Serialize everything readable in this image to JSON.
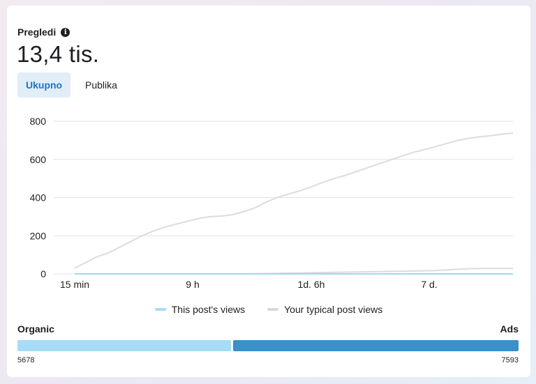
{
  "card": {
    "title": "Pregledi",
    "total": "13,4 tis.",
    "tabs": [
      {
        "label": "Ukupno",
        "active": true
      },
      {
        "label": "Publika",
        "active": false
      }
    ]
  },
  "chart_data": {
    "type": "line",
    "y_ticks": [
      "800",
      "600",
      "400",
      "200",
      "0"
    ],
    "ylim": [
      0,
      800
    ],
    "x_ticks": [
      "15 min",
      "9 h",
      "1d. 6h",
      "7 d."
    ],
    "grid": true,
    "series": [
      {
        "name": "This post's views",
        "color": "#9fd8f6",
        "values": [
          0,
          0,
          0,
          0,
          0,
          0,
          0,
          0,
          0,
          0,
          0,
          0,
          0,
          0,
          0,
          0,
          0,
          0,
          0,
          0,
          0,
          0,
          0,
          0,
          0,
          0,
          0,
          0,
          0,
          0,
          0,
          0,
          0,
          0,
          0,
          0,
          0,
          0,
          0,
          0
        ]
      },
      {
        "name": "Your typical post views",
        "color": "#dcdcdc",
        "values": [
          30,
          60,
          90,
          110,
          140,
          170,
          200,
          225,
          245,
          260,
          275,
          290,
          300,
          303,
          310,
          325,
          345,
          375,
          400,
          418,
          435,
          455,
          478,
          498,
          515,
          535,
          555,
          575,
          595,
          615,
          635,
          650,
          665,
          682,
          698,
          710,
          718,
          724,
          732,
          738
        ]
      },
      {
        "name": "",
        "color": "#dcdcdc",
        "values": [
          0,
          0,
          0,
          0,
          0,
          0,
          0,
          0,
          0,
          0,
          0,
          0,
          0,
          0,
          0,
          0,
          1,
          2,
          3,
          4,
          5,
          6,
          7,
          8,
          9,
          10,
          11,
          12,
          13,
          14,
          15,
          16,
          17,
          20,
          24,
          27,
          28,
          28,
          28,
          28
        ]
      }
    ]
  },
  "legend": {
    "post": "This post's views",
    "typical": "Your typical post views",
    "post_color": "#a6dcf7",
    "typical_color": "#d9d9d9"
  },
  "split": {
    "left_label": "Organic",
    "right_label": "Ads",
    "left_value": "5678",
    "right_value": "7593",
    "left_num": 5678,
    "right_num": 7593,
    "left_color": "#a6dcf7",
    "right_color": "#3a90c9"
  }
}
